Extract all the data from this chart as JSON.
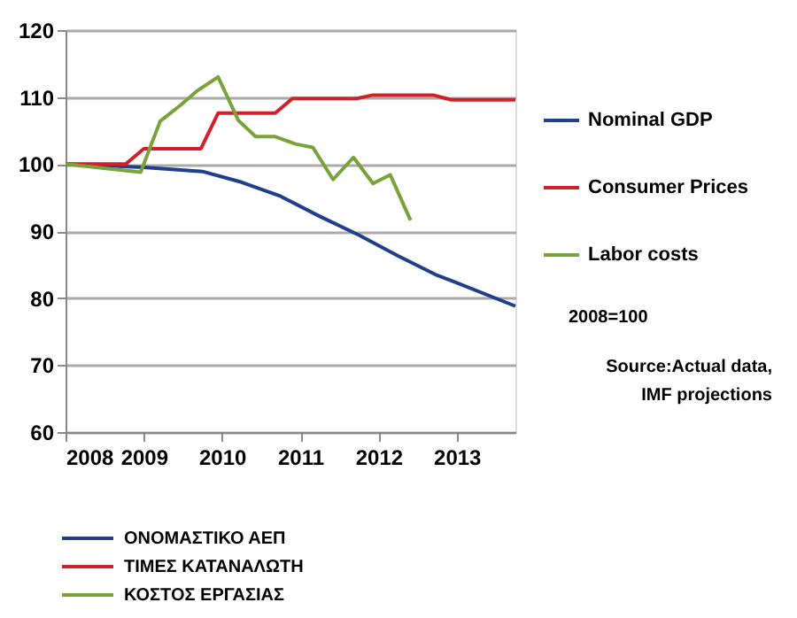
{
  "chart_data": {
    "type": "line",
    "xlim": [
      2008,
      2013.75
    ],
    "xticks": [
      2008,
      2009,
      2010,
      2011,
      2012,
      2013
    ],
    "ylim": [
      60,
      120
    ],
    "yticks": [
      60,
      70,
      80,
      90,
      100,
      110,
      120
    ],
    "grid": "y",
    "legend": "right",
    "marker": "none",
    "line_style": "solid",
    "series": [
      {
        "name": "Nominal GDP",
        "color": "#1f3f8c",
        "x": [
          2008,
          2009,
          2009.75,
          2010.25,
          2010.75,
          2011.25,
          2011.75,
          2012.25,
          2012.75,
          2013,
          2013.75
        ],
        "values": [
          100,
          99.5,
          98.9,
          97.3,
          95.2,
          92.2,
          89.4,
          86.3,
          83.4,
          82.3,
          78.8
        ]
      },
      {
        "name": "Consumer Prices",
        "color": "#d0202a",
        "x": [
          2008,
          2008.77,
          2009,
          2009.73,
          2009.95,
          2010.68,
          2010.9,
          2011.72,
          2011.93,
          2012.7,
          2012.93,
          2013.75
        ],
        "values": [
          100,
          100,
          102.3,
          102.3,
          107.6,
          107.6,
          109.8,
          109.8,
          110.3,
          110.3,
          109.6,
          109.6
        ]
      },
      {
        "name": "Labor costs",
        "color": "#7aa23a",
        "x": [
          2008,
          2008.96,
          2009.21,
          2009.47,
          2009.69,
          2009.95,
          2010.21,
          2010.43,
          2010.68,
          2010.94,
          2011.16,
          2011.42,
          2011.68,
          2011.93,
          2012.15,
          2012.41
        ],
        "values": [
          100,
          98.8,
          106.4,
          108.8,
          111,
          113,
          106.5,
          104.1,
          104.1,
          103,
          102.5,
          97.7,
          101,
          97.1,
          98.4,
          91.6
        ]
      }
    ],
    "annotations": [
      "2008=100",
      "Source:Actual data,\nIMF projections",
      "ΟΝΟΜΑΣΤΙΚΟ ΑΕΠ",
      "ΤΙΜΕΣ ΚΑΤΑΝΑΛΩΤΗ",
      "ΚΟΣΤΟΣ ΕΡΓΑΣΙΑΣ"
    ]
  }
}
